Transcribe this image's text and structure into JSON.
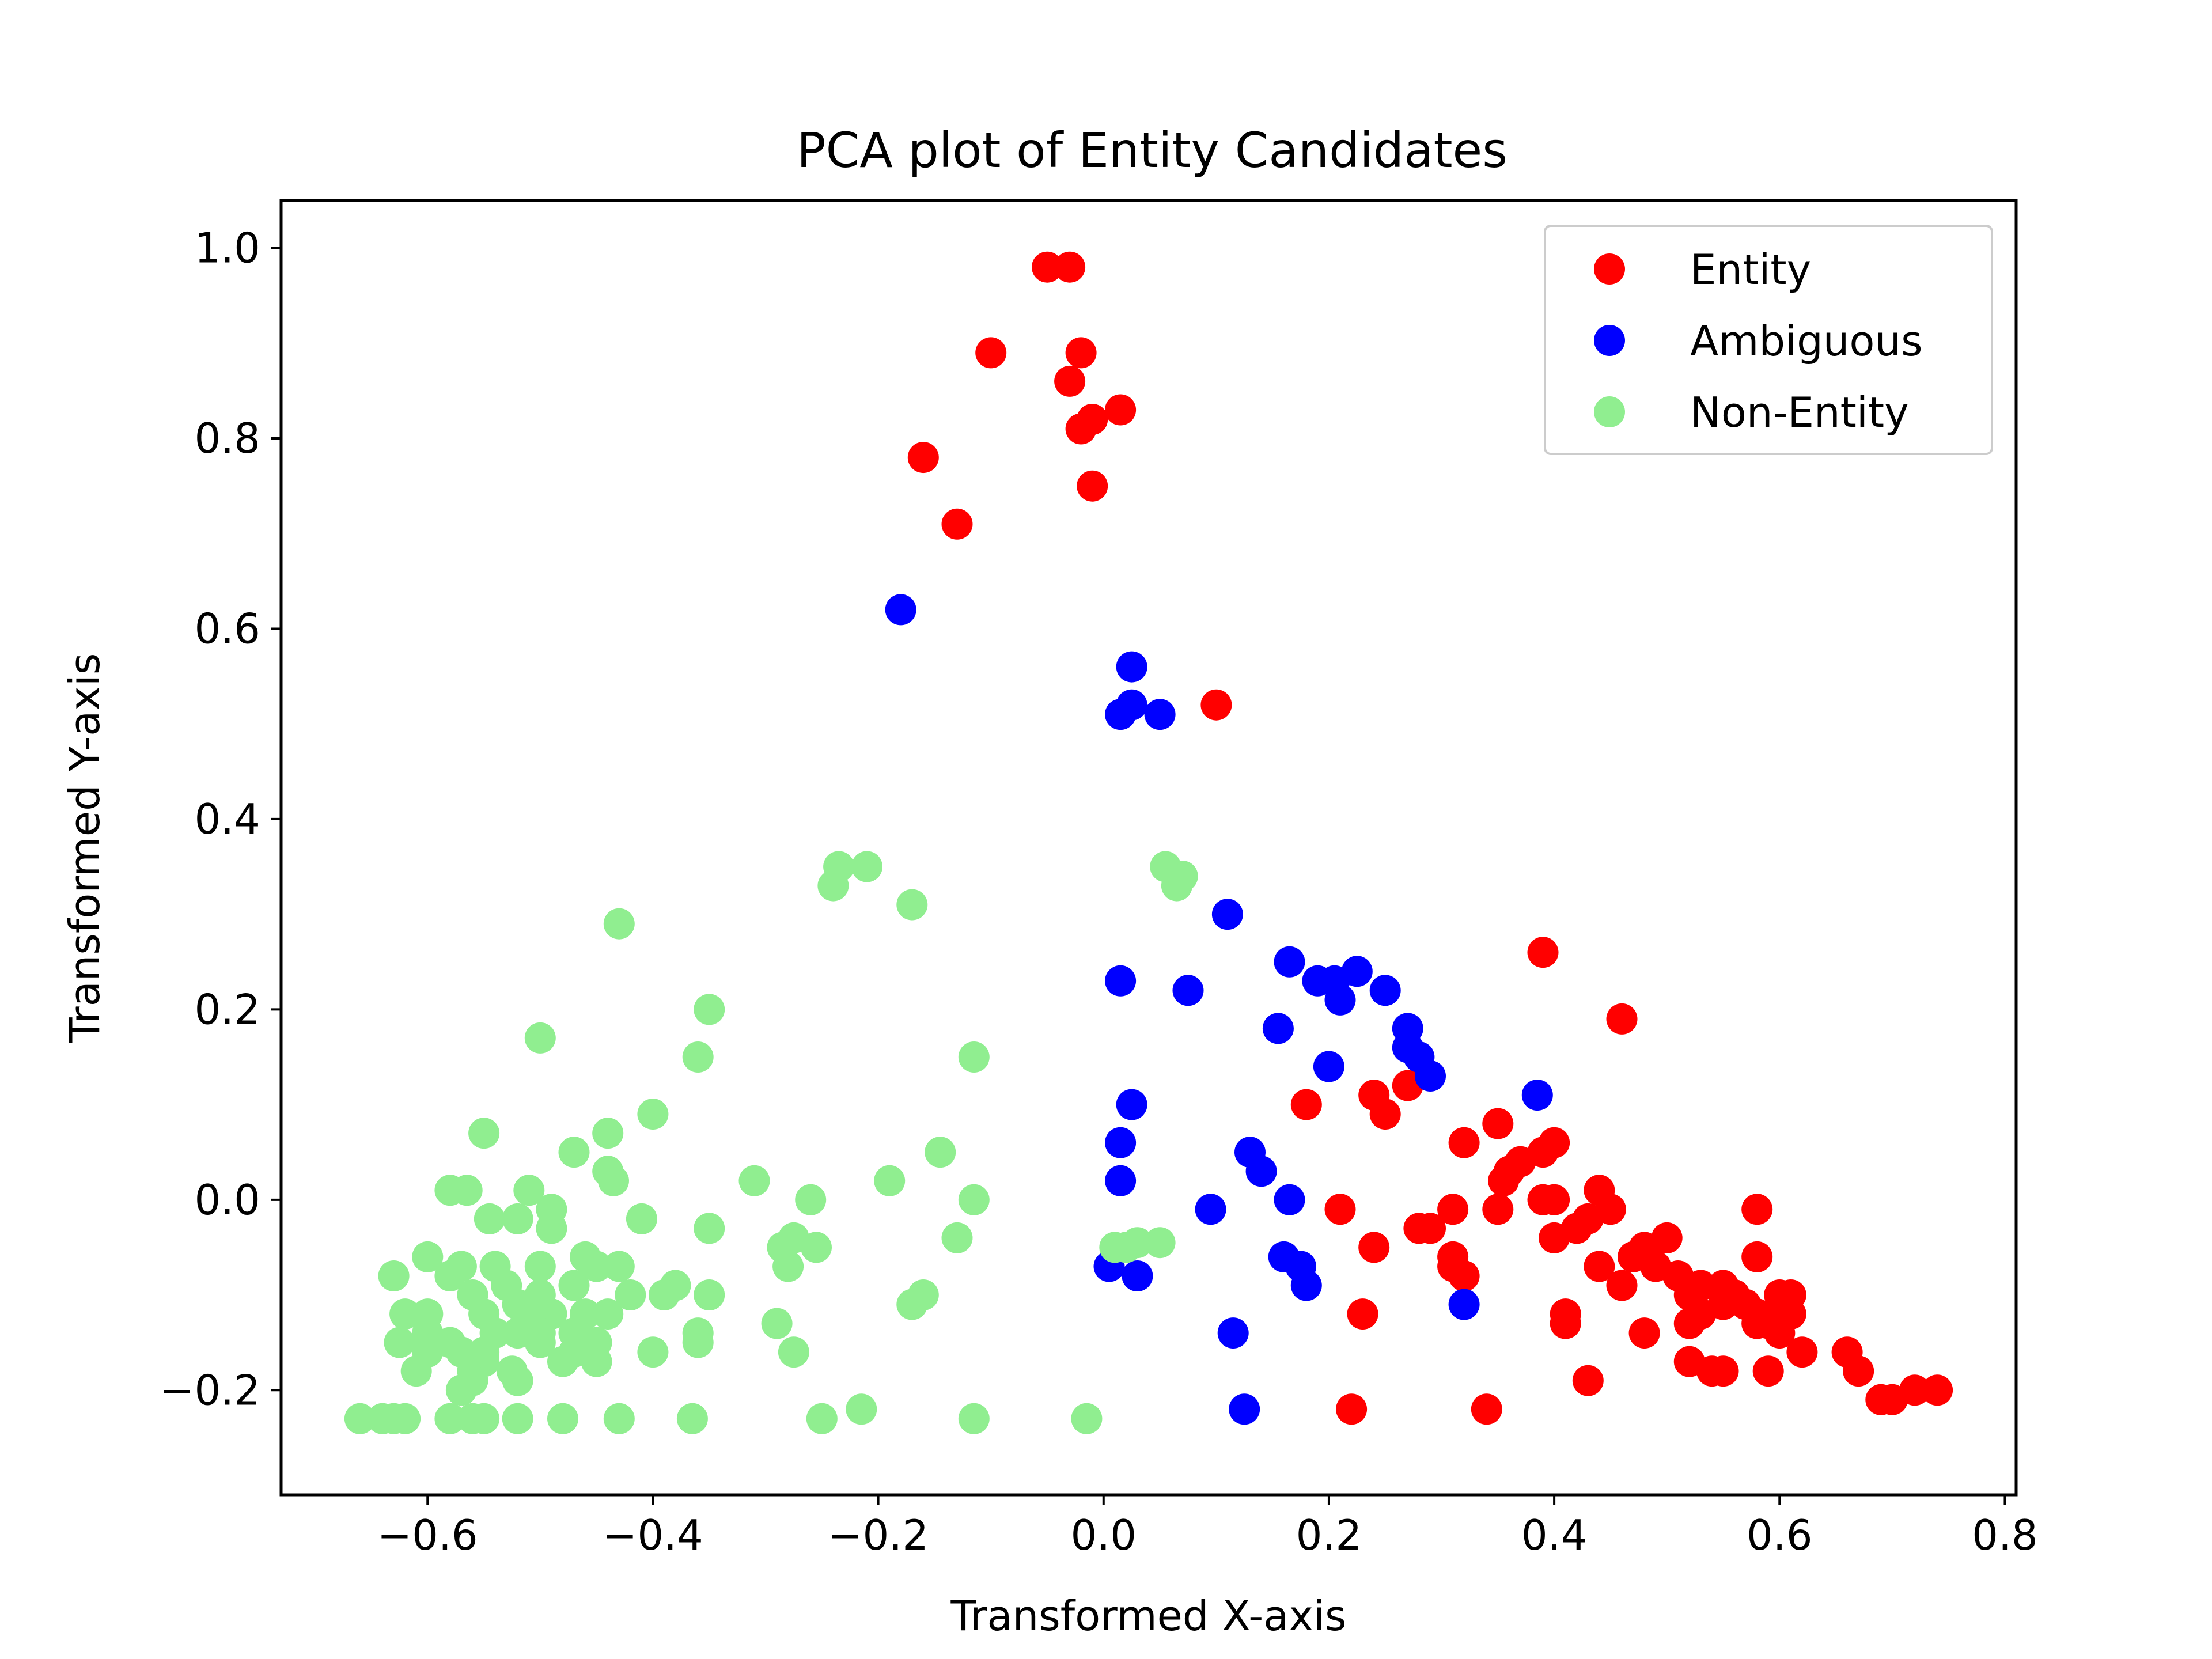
{
  "chart_data": {
    "type": "scatter",
    "title": "PCA plot of Entity Candidates",
    "xlabel": "Transformed X-axis",
    "ylabel": "Transformed Y-axis",
    "xlim": [
      -0.73,
      0.81
    ],
    "ylim": [
      -0.31,
      1.05
    ],
    "xticks": [
      -0.6,
      -0.4,
      -0.2,
      0.0,
      0.2,
      0.4,
      0.6,
      0.8
    ],
    "xtick_labels": [
      "−0.6",
      "−0.4",
      "−0.2",
      "0.0",
      "0.2",
      "0.4",
      "0.6",
      "0.8"
    ],
    "yticks": [
      -0.2,
      0.0,
      0.2,
      0.4,
      0.6,
      0.8,
      1.0
    ],
    "ytick_labels": [
      "−0.2",
      "0.0",
      "0.2",
      "0.4",
      "0.6",
      "0.8",
      "1.0"
    ],
    "grid": false,
    "legend_position": "top-right",
    "series": [
      {
        "name": "Entity",
        "color": "#ff0000",
        "points": [
          [
            -0.05,
            0.98
          ],
          [
            -0.03,
            0.98
          ],
          [
            -0.1,
            0.89
          ],
          [
            -0.02,
            0.89
          ],
          [
            -0.03,
            0.86
          ],
          [
            -0.01,
            0.82
          ],
          [
            0.015,
            0.83
          ],
          [
            -0.02,
            0.81
          ],
          [
            -0.16,
            0.78
          ],
          [
            -0.01,
            0.75
          ],
          [
            -0.13,
            0.71
          ],
          [
            0.1,
            0.52
          ],
          [
            0.39,
            0.26
          ],
          [
            0.46,
            0.19
          ],
          [
            0.18,
            0.1
          ],
          [
            0.24,
            0.11
          ],
          [
            0.27,
            0.12
          ],
          [
            0.25,
            0.09
          ],
          [
            0.32,
            0.06
          ],
          [
            0.35,
            0.08
          ],
          [
            0.4,
            0.06
          ],
          [
            0.39,
            0.05
          ],
          [
            0.37,
            0.04
          ],
          [
            0.36,
            0.03
          ],
          [
            0.355,
            0.02
          ],
          [
            0.39,
            0.0
          ],
          [
            0.4,
            0.0
          ],
          [
            0.44,
            0.01
          ],
          [
            0.45,
            -0.01
          ],
          [
            0.43,
            -0.02
          ],
          [
            0.42,
            -0.03
          ],
          [
            0.4,
            -0.04
          ],
          [
            0.35,
            -0.01
          ],
          [
            0.31,
            -0.01
          ],
          [
            0.21,
            -0.01
          ],
          [
            0.29,
            -0.03
          ],
          [
            0.28,
            -0.03
          ],
          [
            0.24,
            -0.05
          ],
          [
            0.31,
            -0.06
          ],
          [
            0.31,
            -0.07
          ],
          [
            0.32,
            -0.08
          ],
          [
            0.44,
            -0.07
          ],
          [
            0.46,
            -0.09
          ],
          [
            0.48,
            -0.05
          ],
          [
            0.47,
            -0.06
          ],
          [
            0.5,
            -0.04
          ],
          [
            0.49,
            -0.07
          ],
          [
            0.51,
            -0.08
          ],
          [
            0.53,
            -0.09
          ],
          [
            0.55,
            -0.09
          ],
          [
            0.52,
            -0.1
          ],
          [
            0.56,
            -0.1
          ],
          [
            0.58,
            -0.01
          ],
          [
            0.58,
            -0.06
          ],
          [
            0.53,
            -0.12
          ],
          [
            0.55,
            -0.11
          ],
          [
            0.57,
            -0.11
          ],
          [
            0.58,
            -0.12
          ],
          [
            0.6,
            -0.1
          ],
          [
            0.61,
            -0.1
          ],
          [
            0.6,
            -0.12
          ],
          [
            0.59,
            -0.13
          ],
          [
            0.58,
            -0.13
          ],
          [
            0.6,
            -0.14
          ],
          [
            0.61,
            -0.12
          ],
          [
            0.52,
            -0.13
          ],
          [
            0.41,
            -0.12
          ],
          [
            0.41,
            -0.13
          ],
          [
            0.48,
            -0.14
          ],
          [
            0.23,
            -0.12
          ],
          [
            0.62,
            -0.16
          ],
          [
            0.66,
            -0.16
          ],
          [
            0.67,
            -0.18
          ],
          [
            0.52,
            -0.17
          ],
          [
            0.54,
            -0.18
          ],
          [
            0.55,
            -0.18
          ],
          [
            0.59,
            -0.18
          ],
          [
            0.43,
            -0.19
          ],
          [
            0.69,
            -0.21
          ],
          [
            0.7,
            -0.21
          ],
          [
            0.72,
            -0.2
          ],
          [
            0.74,
            -0.2
          ],
          [
            0.22,
            -0.22
          ],
          [
            0.34,
            -0.22
          ]
        ]
      },
      {
        "name": "Ambiguous",
        "color": "#0000ff",
        "points": [
          [
            -0.18,
            0.62
          ],
          [
            0.025,
            0.56
          ],
          [
            0.025,
            0.52
          ],
          [
            0.015,
            0.51
          ],
          [
            0.05,
            0.51
          ],
          [
            0.11,
            0.3
          ],
          [
            0.165,
            0.25
          ],
          [
            0.19,
            0.23
          ],
          [
            0.205,
            0.23
          ],
          [
            0.225,
            0.24
          ],
          [
            0.25,
            0.22
          ],
          [
            0.21,
            0.21
          ],
          [
            0.015,
            0.23
          ],
          [
            0.075,
            0.22
          ],
          [
            0.155,
            0.18
          ],
          [
            0.27,
            0.18
          ],
          [
            0.27,
            0.16
          ],
          [
            0.28,
            0.15
          ],
          [
            0.29,
            0.13
          ],
          [
            0.2,
            0.14
          ],
          [
            0.385,
            0.11
          ],
          [
            0.025,
            0.1
          ],
          [
            0.015,
            0.06
          ],
          [
            0.015,
            0.02
          ],
          [
            0.13,
            0.05
          ],
          [
            0.14,
            0.03
          ],
          [
            0.165,
            0.0
          ],
          [
            0.095,
            -0.01
          ],
          [
            0.16,
            -0.06
          ],
          [
            0.175,
            -0.07
          ],
          [
            0.18,
            -0.09
          ],
          [
            0.005,
            -0.07
          ],
          [
            0.03,
            -0.08
          ],
          [
            0.32,
            -0.11
          ],
          [
            0.115,
            -0.14
          ],
          [
            0.125,
            -0.22
          ]
        ]
      },
      {
        "name": "Non-Entity",
        "color": "#90ee90",
        "points": [
          [
            -0.235,
            0.35
          ],
          [
            -0.21,
            0.35
          ],
          [
            -0.24,
            0.33
          ],
          [
            -0.17,
            0.31
          ],
          [
            0.055,
            0.35
          ],
          [
            0.07,
            0.34
          ],
          [
            0.065,
            0.33
          ],
          [
            -0.43,
            0.29
          ],
          [
            -0.35,
            0.2
          ],
          [
            -0.5,
            0.17
          ],
          [
            -0.36,
            0.15
          ],
          [
            -0.115,
            0.15
          ],
          [
            -0.4,
            0.09
          ],
          [
            -0.44,
            0.07
          ],
          [
            -0.55,
            0.07
          ],
          [
            -0.47,
            0.05
          ],
          [
            -0.145,
            0.05
          ],
          [
            -0.44,
            0.03
          ],
          [
            -0.435,
            0.02
          ],
          [
            -0.58,
            0.01
          ],
          [
            -0.565,
            0.01
          ],
          [
            -0.51,
            0.01
          ],
          [
            -0.31,
            0.02
          ],
          [
            -0.19,
            0.02
          ],
          [
            -0.26,
            0.0
          ],
          [
            -0.115,
            0.0
          ],
          [
            -0.49,
            -0.01
          ],
          [
            -0.52,
            -0.02
          ],
          [
            -0.545,
            -0.02
          ],
          [
            -0.41,
            -0.02
          ],
          [
            -0.35,
            -0.03
          ],
          [
            -0.49,
            -0.03
          ],
          [
            -0.275,
            -0.04
          ],
          [
            -0.255,
            -0.05
          ],
          [
            -0.13,
            -0.04
          ],
          [
            -0.285,
            -0.05
          ],
          [
            -0.28,
            -0.07
          ],
          [
            -0.54,
            -0.07
          ],
          [
            -0.5,
            -0.07
          ],
          [
            -0.46,
            -0.06
          ],
          [
            -0.45,
            -0.07
          ],
          [
            -0.6,
            -0.06
          ],
          [
            -0.57,
            -0.07
          ],
          [
            -0.43,
            -0.07
          ],
          [
            -0.38,
            -0.09
          ],
          [
            -0.63,
            -0.08
          ],
          [
            -0.58,
            -0.08
          ],
          [
            -0.56,
            -0.1
          ],
          [
            -0.53,
            -0.09
          ],
          [
            -0.5,
            -0.1
          ],
          [
            -0.47,
            -0.09
          ],
          [
            -0.42,
            -0.1
          ],
          [
            -0.39,
            -0.1
          ],
          [
            -0.35,
            -0.1
          ],
          [
            -0.16,
            -0.1
          ],
          [
            -0.17,
            -0.11
          ],
          [
            -0.62,
            -0.12
          ],
          [
            -0.6,
            -0.12
          ],
          [
            -0.55,
            -0.12
          ],
          [
            -0.52,
            -0.11
          ],
          [
            -0.51,
            -0.12
          ],
          [
            -0.49,
            -0.12
          ],
          [
            -0.46,
            -0.12
          ],
          [
            -0.44,
            -0.12
          ],
          [
            -0.29,
            -0.13
          ],
          [
            -0.6,
            -0.14
          ],
          [
            -0.58,
            -0.15
          ],
          [
            -0.54,
            -0.14
          ],
          [
            -0.52,
            -0.14
          ],
          [
            -0.5,
            -0.14
          ],
          [
            -0.47,
            -0.14
          ],
          [
            -0.45,
            -0.15
          ],
          [
            -0.36,
            -0.14
          ],
          [
            -0.625,
            -0.15
          ],
          [
            -0.6,
            -0.16
          ],
          [
            -0.57,
            -0.16
          ],
          [
            -0.55,
            -0.16
          ],
          [
            -0.5,
            -0.15
          ],
          [
            -0.47,
            -0.16
          ],
          [
            -0.4,
            -0.16
          ],
          [
            -0.36,
            -0.15
          ],
          [
            -0.275,
            -0.16
          ],
          [
            -0.61,
            -0.18
          ],
          [
            -0.56,
            -0.18
          ],
          [
            -0.55,
            -0.17
          ],
          [
            -0.525,
            -0.18
          ],
          [
            -0.48,
            -0.17
          ],
          [
            -0.45,
            -0.17
          ],
          [
            -0.57,
            -0.2
          ],
          [
            -0.56,
            -0.19
          ],
          [
            -0.52,
            -0.19
          ],
          [
            -0.66,
            -0.23
          ],
          [
            -0.64,
            -0.23
          ],
          [
            -0.63,
            -0.23
          ],
          [
            -0.62,
            -0.23
          ],
          [
            -0.58,
            -0.23
          ],
          [
            -0.56,
            -0.23
          ],
          [
            -0.55,
            -0.23
          ],
          [
            -0.52,
            -0.23
          ],
          [
            -0.48,
            -0.23
          ],
          [
            -0.43,
            -0.23
          ],
          [
            -0.365,
            -0.23
          ],
          [
            -0.25,
            -0.23
          ],
          [
            -0.215,
            -0.22
          ],
          [
            -0.115,
            -0.23
          ],
          [
            -0.015,
            -0.23
          ],
          [
            0.01,
            -0.05
          ],
          [
            0.02,
            -0.05
          ],
          [
            0.03,
            -0.045
          ],
          [
            0.05,
            -0.045
          ]
        ]
      }
    ]
  }
}
